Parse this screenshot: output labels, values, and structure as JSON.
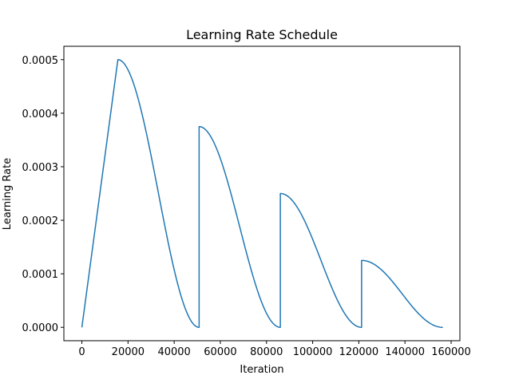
{
  "chart_data": {
    "type": "line",
    "title": "Learning Rate Schedule",
    "xlabel": "Iteration",
    "ylabel": "Learning Rate",
    "xlim": [
      -7800,
      163800
    ],
    "ylim": [
      -2.5e-05,
      0.000525
    ],
    "grid": false,
    "legend": "none",
    "x_ticks": [
      0,
      20000,
      40000,
      60000,
      80000,
      100000,
      120000,
      140000,
      160000
    ],
    "x_tick_labels": [
      "0",
      "20000",
      "40000",
      "60000",
      "80000",
      "100000",
      "120000",
      "140000",
      "160000"
    ],
    "y_ticks": [
      0.0,
      0.0001,
      0.0002,
      0.0003,
      0.0004,
      0.0005
    ],
    "y_tick_labels": [
      "0.0000",
      "0.0001",
      "0.0002",
      "0.0003",
      "0.0004",
      "0.0005"
    ],
    "series": [
      {
        "color": "#1f77b4",
        "segments": [
          {
            "kind": "linear",
            "x0": 0,
            "x1": 15600,
            "y0": 0.0,
            "y1": 0.0005
          },
          {
            "kind": "cosine",
            "x0": 15600,
            "x1": 50800,
            "peak": 0.0005
          },
          {
            "kind": "cosine",
            "x0": 50800,
            "x1": 86000,
            "peak": 0.000375
          },
          {
            "kind": "cosine",
            "x0": 86000,
            "x1": 121200,
            "peak": 0.00025
          },
          {
            "kind": "cosine",
            "x0": 121200,
            "x1": 156400,
            "peak": 0.000125
          }
        ]
      }
    ]
  }
}
